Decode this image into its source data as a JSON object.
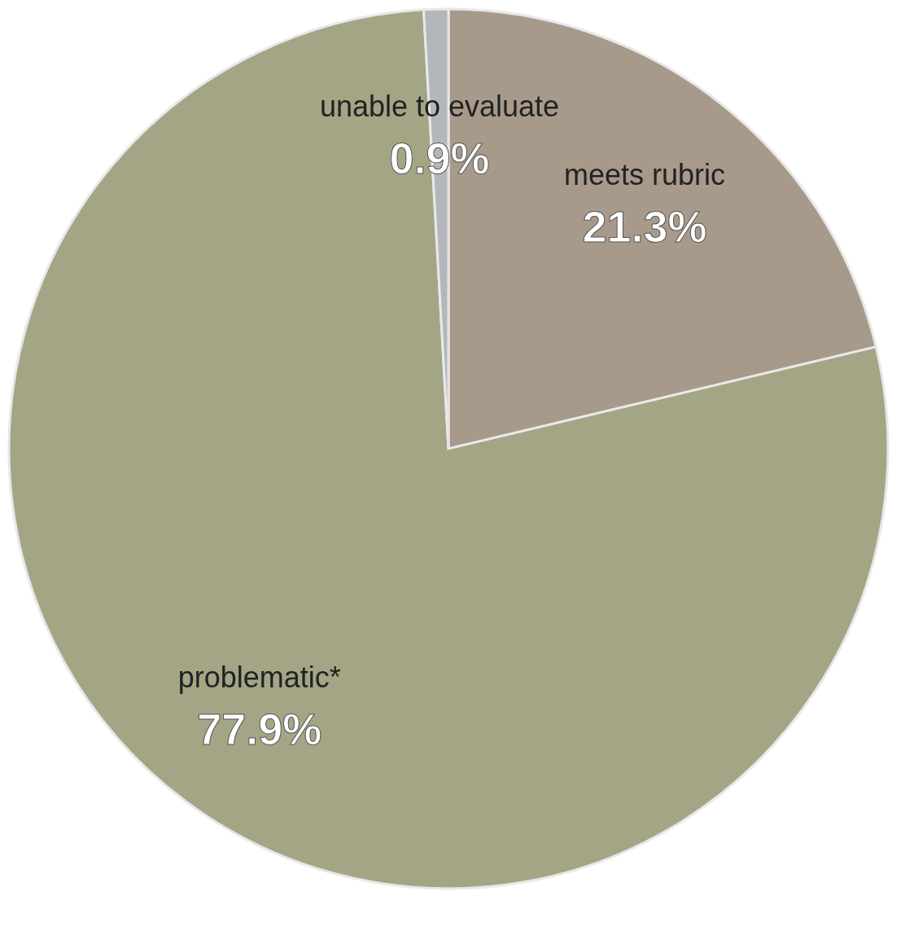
{
  "chart_data": {
    "type": "pie",
    "categories": [
      "meets rubric",
      "problematic*",
      "unable to evaluate"
    ],
    "values": [
      21.3,
      77.9,
      0.9
    ],
    "colors": [
      "#a89a8a",
      "#a3a585",
      "#b3b7bb"
    ],
    "value_labels": [
      "21.3%",
      "77.9%",
      "0.9%"
    ],
    "legend": false
  }
}
